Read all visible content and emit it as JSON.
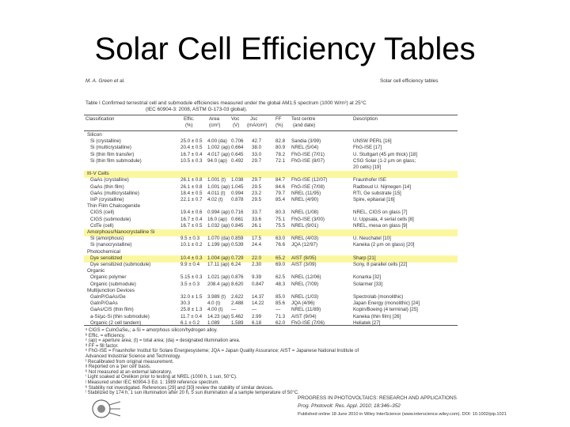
{
  "slide": {
    "title": "Solar Cell Efficiency Tables"
  },
  "paper": {
    "header_left": "M. A. Green et al.",
    "header_right": "Solar cell efficiency tables",
    "table_caption": "Table I  Confirmed terrestrial cell and submodule efficiencies measured under the global AM1.5 spectrum (1000 W/m²) at 25°C",
    "table_caption2": "(IEC 60904-3: 2008, ASTM G-173-03 global).",
    "columns": [
      "Classification",
      "Effic.",
      "Area",
      "Voc",
      "Jsc",
      "FF",
      "Test centre",
      "Description"
    ],
    "units": [
      "(%)",
      "(cm²)",
      "(V)",
      "(mA/cm²)",
      "(%)",
      "(and date)"
    ],
    "sections": {
      "silicon": "Silicon",
      "iiiv": "III-V Cells",
      "thin": "Thin Film Chalcogenide",
      "amorph": "Amorphous/Nanocrystalline Si",
      "photochem": "Photochemical",
      "organic": "Organic",
      "multi": "Multijunction Devices"
    },
    "rows_silicon": [
      [
        "Si (crystalline)",
        "25.0 ± 0.5",
        "4.00 (da)",
        "0.706",
        "42.7",
        "82.8",
        "Sandia (3/99)",
        "UNSW PERL [16]"
      ],
      [
        "Si (multicrystalline)",
        "20.4 ± 0.5",
        "1.002 (ap)",
        "0.664",
        "38.0",
        "80.9",
        "NREL (5/04)",
        "FhG-ISE [17]"
      ],
      [
        "Si (thin film transfer)",
        "16.7 ± 0.4",
        "4.017 (ap)",
        "0.645",
        "33.0",
        "78.2",
        "FhG-ISE (7/01)",
        "U. Stuttgart (45 µm thick) [18]"
      ],
      [
        "Si (thin film submodule)",
        "10.5 ± 0.3",
        "94.0 (ap)",
        "0.492",
        "29.7",
        "72.1",
        "FhG-ISE (8/07)",
        "CSG Solar (1-2 µm on glass;"
      ],
      [
        "",
        "",
        "",
        "",
        "",
        "",
        "",
        "20 cells) [19]"
      ]
    ],
    "rows_iiiv": [
      [
        "GaAs (crystalline)",
        "26.1 ± 0.8",
        "1.001 (t)",
        "1.038",
        "29.7",
        "84.7",
        "FhG-ISE (12/07)",
        "Fraunhofer ISE"
      ],
      [
        "GaAs (thin film)",
        "26.1 ± 0.8",
        "1.001 (ap)",
        "1.045",
        "29.5",
        "84.6",
        "FhG-ISE (7/08)",
        "Radboud U. Nijmegen [14]"
      ],
      [
        "GaAs (multicrystalline)",
        "18.4 ± 0.5",
        "4.011 (t)",
        "0.994",
        "23.2",
        "79.7",
        "NREL (11/95)",
        "RTI, Ge substrate [15]"
      ],
      [
        "InP (crystalline)",
        "22.1 ± 0.7",
        "4.02 (t)",
        "0.878",
        "29.5",
        "85.4",
        "NREL (4/90)",
        "Spire, epitaxial [16]"
      ]
    ],
    "rows_thin": [
      [
        "CIGS (cell)",
        "19.4 ± 0.6",
        "0.994 (ap)",
        "0.716",
        "33.7",
        "80.3",
        "NREL (1/08)",
        "NREL, CIGS on glass [7]"
      ],
      [
        "CIGS (submodule)",
        "16.7 ± 0.4",
        "16.0 (ap)",
        "0.661",
        "33.6",
        "75.1",
        "FhG-ISE (3/00)",
        "U. Uppsala, 4 serial cells [8]"
      ],
      [
        "CdTe (cell)",
        "16.7 ± 0.5",
        "1.032 (ap)",
        "0.845",
        "26.1",
        "75.5",
        "NREL (9/01)",
        "NREL, mesa on glass [9]"
      ]
    ],
    "rows_amorph": [
      [
        "Si (amorphous)",
        "9.5 ± 0.3",
        "1.070 (da)",
        "0.859",
        "17.5",
        "63.0",
        "NREL (4/03)",
        "U. Neuchatel [10]"
      ],
      [
        "Si (nanocrystalline)",
        "10.1 ± 0.2",
        "1.199 (ap)",
        "0.539",
        "24.4",
        "76.6",
        "JQA (12/97)",
        "Kaneka (2 µm on glass) [20]"
      ]
    ],
    "rows_photochem": [
      [
        "Dye sensitized",
        "10.4 ± 0.3",
        "1.004 (ap)",
        "0.729",
        "22.0",
        "65.2",
        "AIST (8/05)",
        "Sharp [21]"
      ],
      [
        "Dye sensitized (submodule)",
        "9.9 ± 0.4",
        "17.11 (ap)",
        "6.24",
        "2.30",
        "69.0",
        "AIST (3/09)",
        "Sony, 8 parallel cells [22]"
      ]
    ],
    "rows_organic": [
      [
        "Organic polymer",
        "5.15 ± 0.3",
        "1.021 (ap)",
        "0.876",
        "9.39",
        "62.5",
        "NREL (12/06)",
        "Konarka [32]"
      ],
      [
        "Organic (submodule)",
        "3.5 ± 0.3",
        "208.4 (ap)",
        "8.620",
        "0.847",
        "48.3",
        "NREL (7/09)",
        "Solarmer [33]"
      ]
    ],
    "rows_multi": [
      [
        "GaInP/GaAs/Ge",
        "32.0 ± 1.5",
        "3.989 (t)",
        "2.622",
        "14.37",
        "85.0",
        "NREL (1/03)",
        "Spectrolab (monolithic)"
      ],
      [
        "GaInP/GaAs",
        "30.3",
        "4.0 (t)",
        "2.488",
        "14.22",
        "85.6",
        "JQA (4/96)",
        "Japan Energy (monolithic) [24]"
      ],
      [
        "GaAs/CIS (thin film)",
        "25.8 ± 1.3",
        "4.00 (t)",
        "—",
        "—",
        "—",
        "NREL (11/89)",
        "Kopin/Boeing (4 terminal) [25]"
      ],
      [
        "a-Si/µc-Si (thin submodule)",
        "11.7 ± 0.4",
        "14.23 (ap)",
        "5.462",
        "2.99",
        "71.3",
        "AIST (9/04)",
        "Kaneka (thin film) [26]"
      ],
      [
        "Organic (2 cell tandem)",
        "6.1 ± 0.2",
        "1.089",
        "1.589",
        "6.18",
        "62.0",
        "FhG-ISE (7/06)",
        "Heliatek [27]"
      ]
    ],
    "footnotes": [
      "ᵃ CIGS = CuInGaSe₂; a-Si = amorphous silicon/hydrogen alloy.",
      "ᵇ Effic. = efficiency.",
      "ᶜ (ap) = aperture area; (t) = total area; (da) = designated illumination area.",
      "ᵈ FF = fill factor.",
      "ᵉ FhG-ISE = Fraunhofer Institut für Solare Energiesysteme; JQA = Japan Quality Assurance; AIST = Japanese National Institute of",
      "  Advanced Industrial Science and Technology.",
      "ᶠ Recalibrated from original measurement.",
      "ᵍ Reported on a 'per cell' basis.",
      "ʰ Not measured at an external laboratory.",
      "ⁱ Light soaked at Orelikon prior to testing at NREL (1000 h, 1 sun, 50°C).",
      "ʲ Measured under IEC 60904-3 Ed. 1: 1989 reference spectrum.",
      "ᵏ Stability not investigated. References [29] and [30] review the stability of similar devices.",
      "ˡ Stabilized by 174 h, 1 sun illumination after 20 h, 5 sun illumination at a sample temperature of 50°C."
    ],
    "journal_name": "PROGRESS IN PHOTOVOLTAICS: RESEARCH AND APPLICATIONS",
    "citation": "Prog. Photovolt: Res. Appl. 2010; 18:346–352",
    "published": "Published online 18 June 2010 in Wiley InterScience (www.interscience.wiley.com). DOI: 10.1002/pip.1021",
    "highlight_color": "#fbf7a0"
  }
}
